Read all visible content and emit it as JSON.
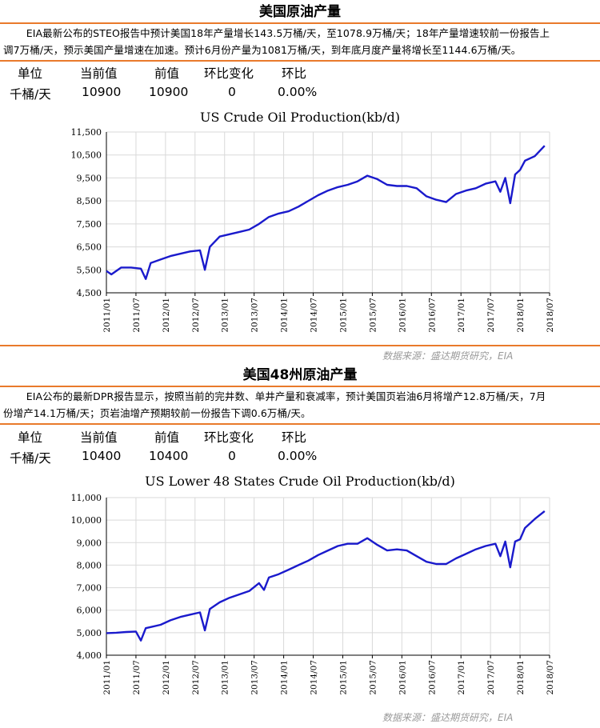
{
  "sections": [
    {
      "title": "美国原油产量",
      "desc_line1": "EIA最新公布的STEO报告中预计美国18年产量增长143.5万桶/天，至1078.9万桶/天；18年产量增速较前一份报告上",
      "desc_line2": "调7万桶/天，预示美国产量增速在加速。预计6月份产量为1081万桶/天，到年底月度产量将增长至1144.6万桶/天。",
      "table": {
        "headers": [
          "单位",
          "当前值",
          "前值",
          "环比变化",
          "环比"
        ],
        "row": [
          "千桶/天",
          "10900",
          "10900",
          "0",
          "0.00%"
        ]
      },
      "source": "数据来源：盛达期货研究，EIA"
    },
    {
      "title": "美国48州原油产量",
      "desc_line1": "EIA公布的最新DPR报告显示，按照当前的完井数、单井产量和衰减率，预计美国页岩油6月将增产12.8万桶/天，7月",
      "desc_line2": "份增产14.1万桶/天；页岩油增产预期较前一份报告下调0.6万桶/天。",
      "table": {
        "headers": [
          "单位",
          "当前值",
          "前值",
          "环比变化",
          "环比"
        ],
        "row": [
          "千桶/天",
          "10400",
          "10400",
          "0",
          "0.00%"
        ]
      },
      "source": "数据来源：盛达期货研究，EIA"
    }
  ],
  "colors": {
    "line": "#1a1acc",
    "accent": "#e97a2b",
    "grid": "#d9d9d9"
  },
  "chart_data": [
    {
      "type": "line",
      "title": "US Crude Oil Production(kb/d)",
      "xlabel": "",
      "ylabel": "",
      "xlim": [
        "2011/01",
        "2018/07"
      ],
      "ylim": [
        4500,
        11500
      ],
      "yticks": [
        4500,
        5500,
        6500,
        7500,
        8500,
        9500,
        10500,
        11500
      ],
      "ytick_labels": [
        "4,500",
        "5,500",
        "6,500",
        "7,500",
        "8,500",
        "9,500",
        "10,500",
        "11,500"
      ],
      "xtick_labels": [
        "2011/01",
        "2011/07",
        "2012/01",
        "2012/07",
        "2013/01",
        "2013/07",
        "2014/01",
        "2014/07",
        "2015/01",
        "2015/07",
        "2016/01",
        "2016/07",
        "2017/01",
        "2017/07",
        "2018/01",
        "2018/07"
      ],
      "grid": true,
      "series": [
        {
          "x": [
            "2011/01",
            "2011/02",
            "2011/04",
            "2011/06",
            "2011/08",
            "2011/09",
            "2011/10",
            "2011/12",
            "2012/02",
            "2012/04",
            "2012/06",
            "2012/08",
            "2012/09",
            "2012/10",
            "2012/12",
            "2013/02",
            "2013/04",
            "2013/06",
            "2013/08",
            "2013/10",
            "2013/12",
            "2014/02",
            "2014/04",
            "2014/06",
            "2014/08",
            "2014/10",
            "2014/12",
            "2015/02",
            "2015/04",
            "2015/06",
            "2015/08",
            "2015/10",
            "2015/12",
            "2016/02",
            "2016/04",
            "2016/06",
            "2016/08",
            "2016/10",
            "2016/12",
            "2017/02",
            "2017/04",
            "2017/06",
            "2017/08",
            "2017/09",
            "2017/10",
            "2017/11",
            "2017/12",
            "2018/01",
            "2018/02",
            "2018/04",
            "2018/06"
          ],
          "values": [
            5450,
            5300,
            5600,
            5600,
            5550,
            5100,
            5800,
            5950,
            6100,
            6200,
            6300,
            6350,
            5500,
            6500,
            6950,
            7050,
            7150,
            7250,
            7500,
            7800,
            7950,
            8050,
            8250,
            8500,
            8750,
            8950,
            9100,
            9200,
            9350,
            9600,
            9450,
            9200,
            9150,
            9150,
            9050,
            8700,
            8550,
            8450,
            8800,
            8950,
            9050,
            9250,
            9350,
            8900,
            9500,
            8400,
            9650,
            9850,
            10250,
            10450,
            10900
          ]
        }
      ]
    },
    {
      "type": "line",
      "title": "US Lower 48 States Crude Oil Production(kb/d)",
      "xlabel": "",
      "ylabel": "",
      "xlim": [
        "2011/01",
        "2018/07"
      ],
      "ylim": [
        4000,
        11000
      ],
      "yticks": [
        4000,
        5000,
        6000,
        7000,
        8000,
        9000,
        10000,
        11000
      ],
      "ytick_labels": [
        "4,000",
        "5,000",
        "6,000",
        "7,000",
        "8,000",
        "9,000",
        "10,000",
        "11,000"
      ],
      "xtick_labels": [
        "2011/01",
        "2011/07",
        "2012/01",
        "2012/07",
        "2013/01",
        "2013/07",
        "2014/01",
        "2014/07",
        "2015/01",
        "2015/07",
        "2016/01",
        "2016/07",
        "2017/01",
        "2017/07",
        "2018/01",
        "2018/07"
      ],
      "grid": true,
      "series": [
        {
          "x": [
            "2011/01",
            "2011/03",
            "2011/05",
            "2011/07",
            "2011/08",
            "2011/09",
            "2011/10",
            "2011/12",
            "2012/02",
            "2012/04",
            "2012/06",
            "2012/08",
            "2012/09",
            "2012/10",
            "2012/12",
            "2013/02",
            "2013/04",
            "2013/06",
            "2013/08",
            "2013/09",
            "2013/10",
            "2013/12",
            "2014/02",
            "2014/04",
            "2014/06",
            "2014/08",
            "2014/10",
            "2014/12",
            "2015/02",
            "2015/04",
            "2015/06",
            "2015/08",
            "2015/10",
            "2015/12",
            "2016/02",
            "2016/04",
            "2016/06",
            "2016/08",
            "2016/10",
            "2016/12",
            "2017/02",
            "2017/04",
            "2017/06",
            "2017/08",
            "2017/09",
            "2017/10",
            "2017/11",
            "2017/12",
            "2018/01",
            "2018/02",
            "2018/04",
            "2018/06"
          ],
          "values": [
            4980,
            5000,
            5030,
            5050,
            4650,
            5200,
            5250,
            5350,
            5550,
            5700,
            5800,
            5900,
            5100,
            6050,
            6350,
            6550,
            6700,
            6850,
            7200,
            6900,
            7450,
            7600,
            7800,
            8000,
            8200,
            8450,
            8650,
            8850,
            8950,
            8950,
            9200,
            8900,
            8650,
            8700,
            8650,
            8400,
            8150,
            8050,
            8050,
            8300,
            8500,
            8700,
            8850,
            8950,
            8400,
            9050,
            7900,
            9050,
            9150,
            9650,
            10050,
            10400
          ]
        }
      ]
    }
  ]
}
